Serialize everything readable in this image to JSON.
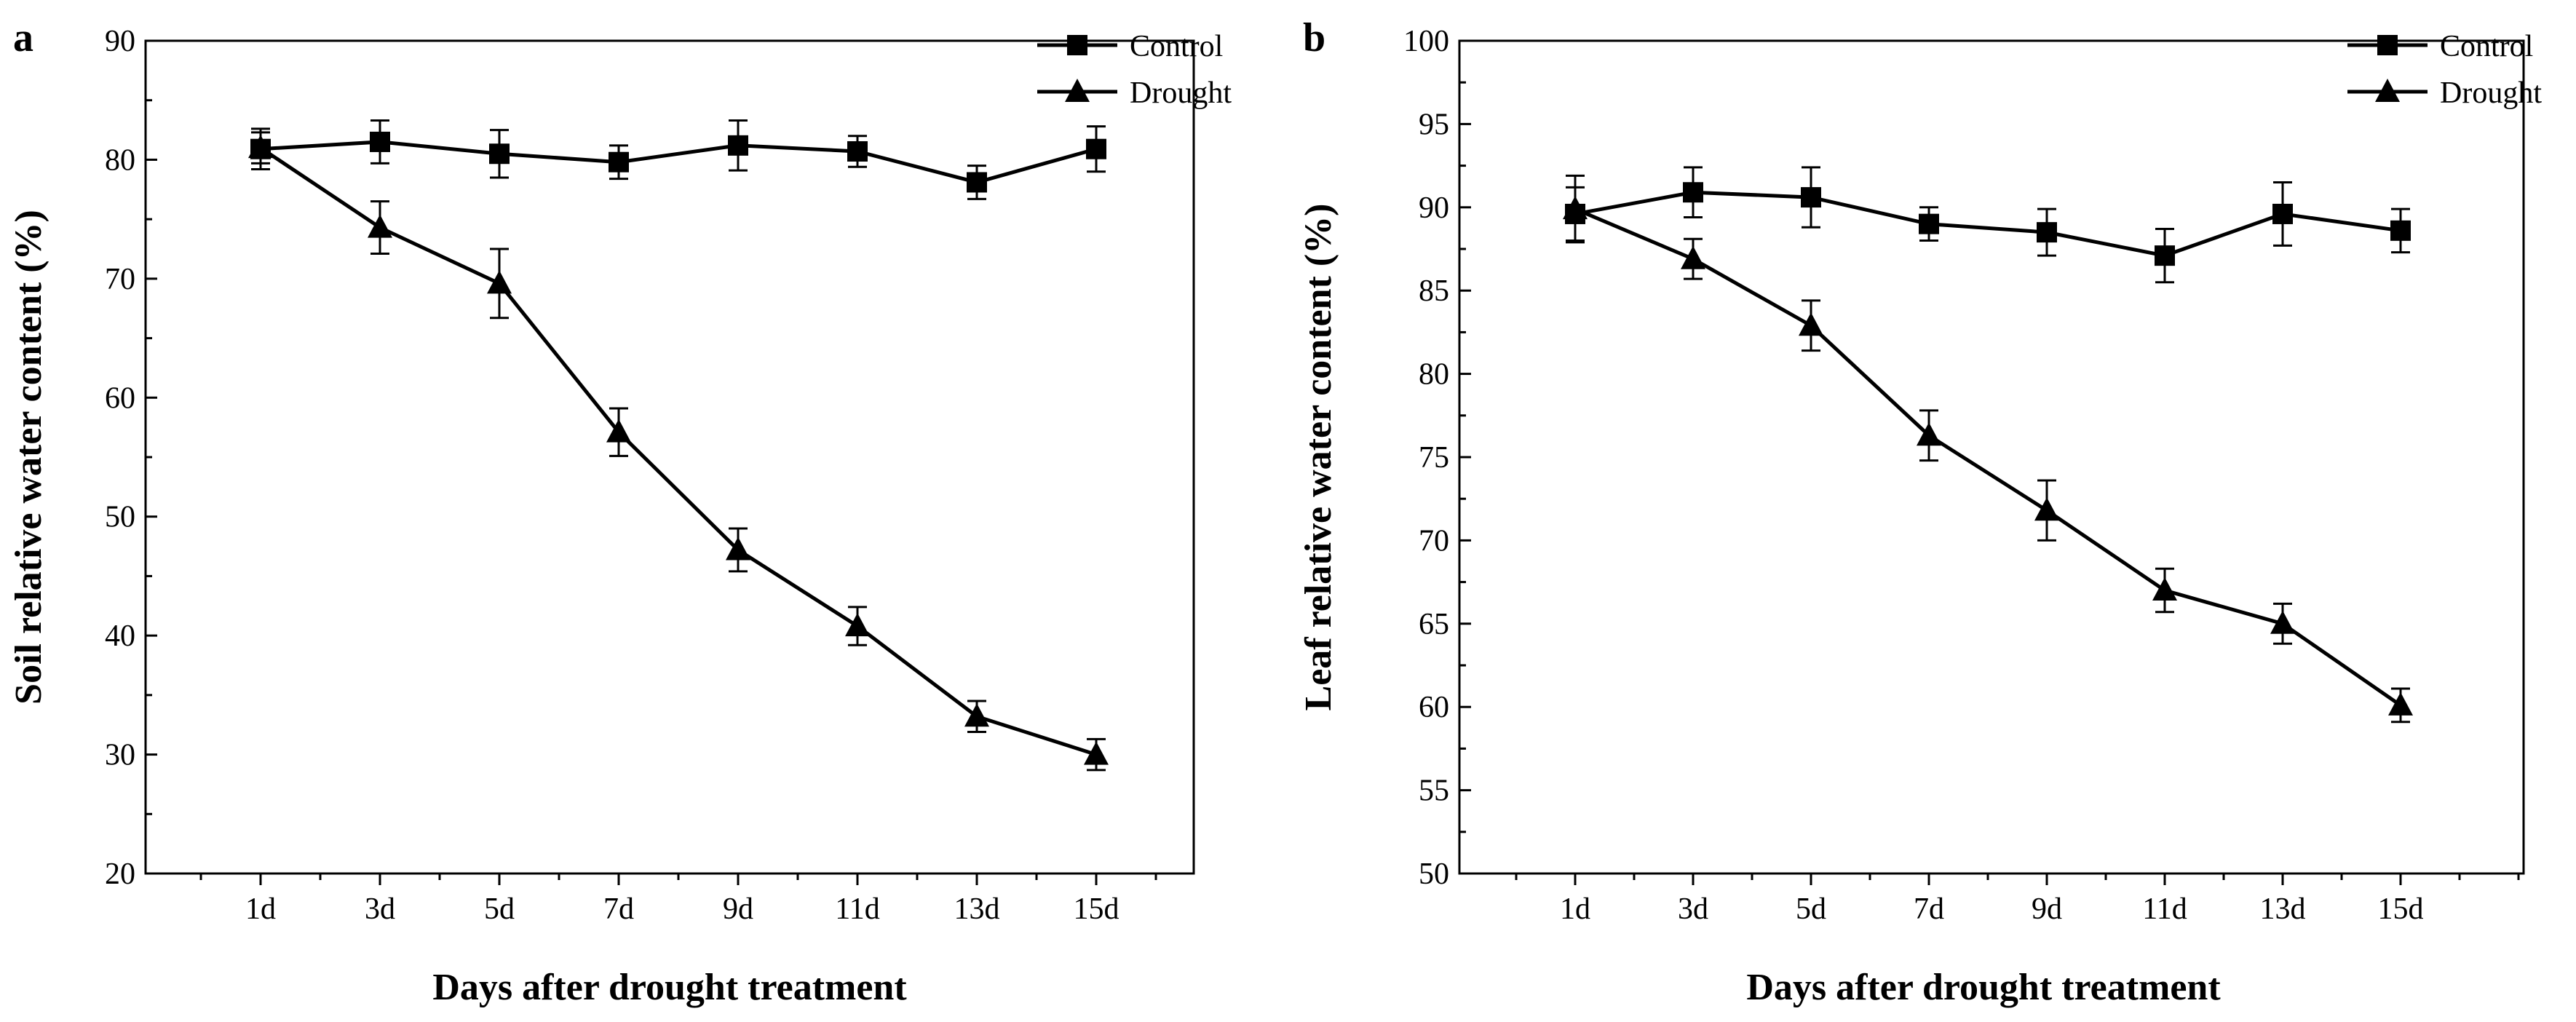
{
  "chart_data": [
    {
      "panel": "a",
      "type": "line",
      "xlabel": "Days after drought treatment",
      "ylabel": "Soil relative water content (%)",
      "categories": [
        "1d",
        "3d",
        "5d",
        "7d",
        "9d",
        "11d",
        "13d",
        "15d"
      ],
      "ylim": [
        20,
        90
      ],
      "yticks": [
        20,
        30,
        40,
        50,
        60,
        70,
        80,
        90
      ],
      "ytick_labels": [
        "20",
        "30",
        "40",
        "50",
        "60",
        "70",
        "80",
        "90"
      ],
      "series": [
        {
          "name": "Control",
          "marker": "square",
          "values": [
            80.9,
            81.5,
            80.5,
            79.8,
            81.2,
            80.7,
            78.1,
            80.9
          ],
          "errors": [
            1.7,
            1.8,
            2.0,
            1.4,
            2.1,
            1.3,
            1.4,
            1.9
          ]
        },
        {
          "name": "Drought",
          "marker": "triangle",
          "values": [
            81.0,
            74.3,
            69.6,
            57.1,
            47.2,
            40.8,
            33.2,
            30.0
          ],
          "errors": [
            1.3,
            2.2,
            2.9,
            2.0,
            1.8,
            1.6,
            1.3,
            1.3
          ]
        }
      ],
      "legend": "top-right"
    },
    {
      "panel": "b",
      "type": "line",
      "xlabel": "Days after drought treatment",
      "ylabel": "Leaf relative water content (%)",
      "categories": [
        "1d",
        "3d",
        "5d",
        "7d",
        "9d",
        "11d",
        "13d",
        "15d"
      ],
      "ylim": [
        50,
        100
      ],
      "yticks": [
        50,
        55,
        60,
        65,
        70,
        75,
        80,
        85,
        90,
        95,
        100
      ],
      "ytick_labels": [
        "50",
        "55",
        "60",
        "65",
        "70",
        "75",
        "80",
        "85",
        "90",
        "95",
        "100"
      ],
      "series": [
        {
          "name": "Control",
          "marker": "square",
          "values": [
            89.6,
            90.9,
            90.6,
            89.0,
            88.5,
            87.1,
            89.6,
            88.6
          ],
          "errors": [
            1.6,
            1.5,
            1.8,
            1.0,
            1.4,
            1.6,
            1.9,
            1.3
          ]
        },
        {
          "name": "Drought",
          "marker": "triangle",
          "values": [
            89.9,
            86.9,
            82.9,
            76.3,
            71.8,
            67.0,
            65.0,
            60.1
          ],
          "errors": [
            2.0,
            1.2,
            1.5,
            1.5,
            1.8,
            1.3,
            1.2,
            1.0
          ]
        }
      ],
      "legend": "top-right"
    }
  ]
}
